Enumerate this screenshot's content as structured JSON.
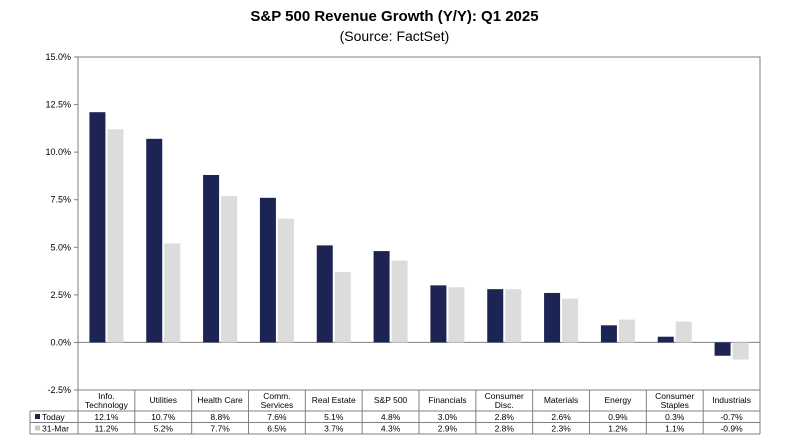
{
  "chart_data": {
    "type": "bar",
    "title": "S&P 500 Revenue Growth (Y/Y): Q1 2025",
    "subtitle": "(Source: FactSet)",
    "categories": [
      [
        "Info.",
        "Technology"
      ],
      [
        "Utilities"
      ],
      [
        "Health Care"
      ],
      [
        "Comm.",
        "Services"
      ],
      [
        "Real Estate"
      ],
      [
        "S&P 500"
      ],
      [
        "Financials"
      ],
      [
        "Consumer",
        "Disc."
      ],
      [
        "Materials"
      ],
      [
        "Energy"
      ],
      [
        "Consumer",
        "Staples"
      ],
      [
        "Industrials"
      ]
    ],
    "series": [
      {
        "name": "Today",
        "color": "#1b2452",
        "values": [
          12.1,
          10.7,
          8.8,
          7.6,
          5.1,
          4.8,
          3.0,
          2.8,
          2.6,
          0.9,
          0.3,
          -0.7
        ],
        "labels": [
          "12.1%",
          "10.7%",
          "8.8%",
          "7.6%",
          "5.1%",
          "4.8%",
          "3.0%",
          "2.8%",
          "2.6%",
          "0.9%",
          "0.3%",
          "-0.7%"
        ]
      },
      {
        "name": "31-Mar",
        "color": "#dcdcdc",
        "values": [
          11.2,
          5.2,
          7.7,
          6.5,
          3.7,
          4.3,
          2.9,
          2.8,
          2.3,
          1.2,
          1.1,
          -0.9
        ],
        "labels": [
          "11.2%",
          "5.2%",
          "7.7%",
          "6.5%",
          "3.7%",
          "4.3%",
          "2.9%",
          "2.8%",
          "2.3%",
          "1.2%",
          "1.1%",
          "-0.9%"
        ]
      }
    ],
    "ylim": [
      -2.5,
      15.0
    ],
    "yticks": [
      15.0,
      12.5,
      10.0,
      7.5,
      5.0,
      2.5,
      0.0,
      -2.5
    ],
    "ytick_labels": [
      "15.0%",
      "12.5%",
      "10.0%",
      "7.5%",
      "5.0%",
      "2.5%",
      "0.0%",
      "-2.5%"
    ],
    "legend": "table-below",
    "grid": false
  }
}
